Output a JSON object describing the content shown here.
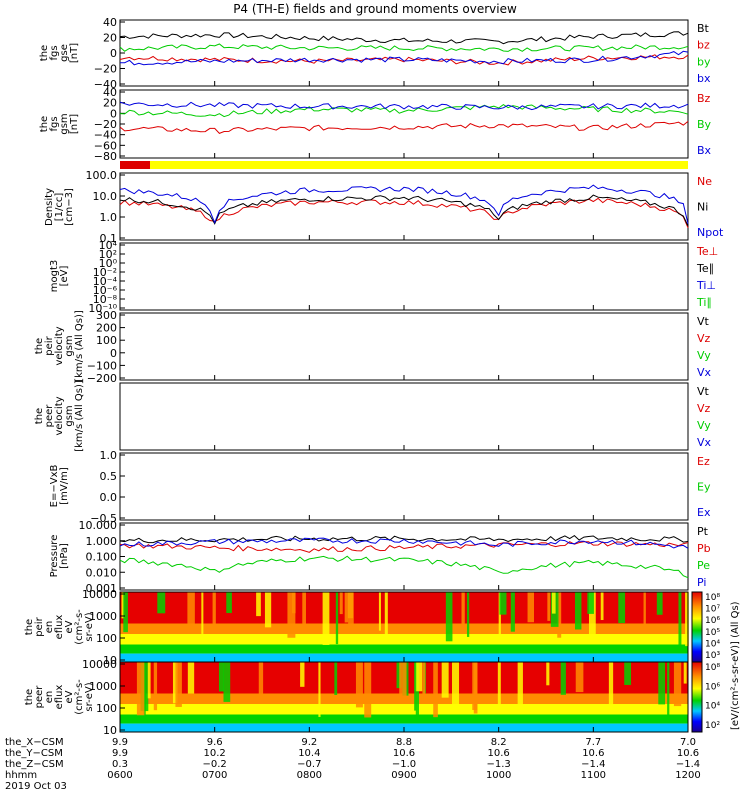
{
  "page_title": "P4 (TH-E) fields and ground moments overview",
  "chart_data": [
    {
      "type": "line",
      "panel_id": "fgs_gse",
      "ylabel_lines": [
        "the",
        "fgs",
        "gse",
        "[nT]"
      ],
      "yticks": [
        "40",
        "20",
        "0",
        "−20",
        "−40"
      ],
      "ylim": [
        -40,
        40
      ],
      "x": [
        "0600",
        "0700",
        "0800",
        "0900",
        "1000",
        "1100",
        "1200"
      ],
      "series": [
        {
          "name": "Bt",
          "color": "#000000",
          "values": [
            20,
            22,
            18,
            15,
            14,
            20,
            24
          ]
        },
        {
          "name": "bz",
          "color": "#dd0000",
          "values": [
            -5,
            -8,
            -10,
            -8,
            -12,
            -6,
            -4
          ]
        },
        {
          "name": "by",
          "color": "#00cc00",
          "values": [
            5,
            8,
            6,
            6,
            5,
            6,
            8
          ]
        },
        {
          "name": "bx",
          "color": "#0000dd",
          "values": [
            -12,
            -10,
            -8,
            -8,
            -10,
            -8,
            0
          ]
        }
      ]
    },
    {
      "type": "line",
      "panel_id": "fgs_gsm",
      "ylabel_lines": [
        "the",
        "fgs",
        "gsm",
        "[nT]"
      ],
      "yticks": [
        "40",
        "20",
        "0",
        "−20",
        "−40",
        "−60",
        "−80"
      ],
      "ylim": [
        -85,
        40
      ],
      "x": [
        "0600",
        "0700",
        "0800",
        "0900",
        "1000",
        "1100",
        "1200"
      ],
      "series": [
        {
          "name": "Bz",
          "color": "#dd0000",
          "values": [
            -30,
            -35,
            -30,
            -28,
            -25,
            -30,
            -20
          ]
        },
        {
          "name": "By",
          "color": "#00cc00",
          "values": [
            0,
            -5,
            5,
            2,
            10,
            5,
            0
          ]
        },
        {
          "name": "Bx",
          "color": "#0000dd",
          "values": [
            15,
            12,
            10,
            10,
            8,
            10,
            12
          ]
        }
      ]
    },
    {
      "type": "line",
      "panel_id": "density",
      "ylabel_lines": [
        "Density",
        "[1/cc]",
        "[cm−3]"
      ],
      "yticks": [
        "100.0",
        "10.0",
        "1.0",
        "0.1"
      ],
      "log": true,
      "x": [
        "0600",
        "0700",
        "0800",
        "0900",
        "1000",
        "1100",
        "1200"
      ],
      "series": [
        {
          "name": "Ne",
          "color": "#dd0000",
          "values": [
            6,
            0.2,
            6,
            6,
            0.3,
            8,
            0.15
          ]
        },
        {
          "name": "Ni",
          "color": "#000000",
          "values": [
            10,
            0.25,
            10,
            12,
            0.4,
            12,
            0.2
          ]
        },
        {
          "name": "Npot",
          "color": "#0000dd",
          "values": [
            40,
            0.3,
            40,
            50,
            0.5,
            60,
            0.3
          ]
        }
      ]
    },
    {
      "type": "line",
      "panel_id": "temperature",
      "ylabel_lines": [
        "mogt3",
        "[eV]"
      ],
      "yticks": [
        "10⁴",
        "10²",
        "10⁰",
        "10⁻²",
        "10⁻⁴",
        "10⁻⁶",
        "10⁻⁸",
        "10⁻¹⁰"
      ],
      "log": true,
      "series": [
        {
          "name": "Te⊥",
          "color": "#dd0000"
        },
        {
          "name": "Te∥",
          "color": "#000000"
        },
        {
          "name": "Ti⊥",
          "color": "#0000dd"
        },
        {
          "name": "Ti∥",
          "color": "#00cc00"
        }
      ]
    },
    {
      "type": "line",
      "panel_id": "peir_velocity",
      "ylabel_lines": [
        "the",
        "peir",
        "velocity",
        "gsm",
        "[km/s (All Qs)]"
      ],
      "yticks": [
        "300",
        "200",
        "100",
        "0",
        "−100",
        "−200"
      ],
      "ylim": [
        -200,
        300
      ],
      "series": [
        {
          "name": "Vt",
          "color": "#000000"
        },
        {
          "name": "Vz",
          "color": "#dd0000"
        },
        {
          "name": "Vy",
          "color": "#00cc00"
        },
        {
          "name": "Vx",
          "color": "#0000dd"
        }
      ]
    },
    {
      "type": "line",
      "panel_id": "peer_velocity",
      "ylabel_lines": [
        "the",
        "peer",
        "velocity",
        "gsm",
        "[km/s (All Qs)]"
      ],
      "series": [
        {
          "name": "Vt",
          "color": "#000000"
        },
        {
          "name": "Vz",
          "color": "#dd0000"
        },
        {
          "name": "Vy",
          "color": "#00cc00"
        },
        {
          "name": "Vx",
          "color": "#0000dd"
        }
      ]
    },
    {
      "type": "line",
      "panel_id": "e_field",
      "ylabel_lines": [
        "E=−VxB",
        "[mV/m]"
      ],
      "yticks": [
        "1.0",
        "0.5",
        "0.0",
        "−0.5"
      ],
      "ylim": [
        -0.5,
        1.25
      ],
      "series": [
        {
          "name": "Ez",
          "color": "#dd0000"
        },
        {
          "name": "Ey",
          "color": "#00cc00"
        },
        {
          "name": "Ex",
          "color": "#0000dd"
        }
      ]
    },
    {
      "type": "line",
      "panel_id": "pressure",
      "ylabel_lines": [
        "Pressure",
        "[nPa]"
      ],
      "yticks": [
        "10.000",
        "1.000",
        "0.100",
        "0.010",
        "0.001"
      ],
      "log": true,
      "x": [
        "0600",
        "0700",
        "0800",
        "0900",
        "1000",
        "1100",
        "1200"
      ],
      "series": [
        {
          "name": "Pt",
          "color": "#000000",
          "values": [
            0.6,
            0.7,
            0.8,
            0.8,
            0.7,
            0.9,
            0.7
          ]
        },
        {
          "name": "Pb",
          "color": "#dd0000",
          "values": [
            0.3,
            0.2,
            0.15,
            0.2,
            0.3,
            0.4,
            0.3
          ]
        },
        {
          "name": "Pe",
          "color": "#00cc00",
          "values": [
            0.03,
            0.005,
            0.04,
            0.03,
            0.004,
            0.02,
            0.003
          ]
        },
        {
          "name": "Pi",
          "color": "#0000dd",
          "values": [
            0.3,
            0.5,
            0.6,
            0.6,
            0.3,
            0.6,
            0.2
          ]
        }
      ]
    },
    {
      "type": "heatmap",
      "panel_id": "peir_eflux",
      "ylabel_lines": [
        "the",
        "peir",
        "en",
        "eflux",
        "eV",
        "(cm²-s-",
        "sr-eV)"
      ],
      "yticks": [
        "10000",
        "1000",
        "100",
        "10"
      ],
      "log": true
    },
    {
      "type": "heatmap",
      "panel_id": "peer_eflux",
      "ylabel_lines": [
        "the",
        "peer",
        "en",
        "eflux",
        "eV",
        "(cm²-s-",
        "sr-eV)"
      ],
      "yticks": [
        "10000",
        "1000",
        "100",
        "10"
      ],
      "log": true
    }
  ],
  "colorbar": {
    "ticks": [
      "10⁸",
      "10⁷",
      "10⁶",
      "10⁵",
      "10⁴",
      "10³"
    ],
    "ticks2": [
      "10⁸",
      "10⁶",
      "10⁴",
      "10²"
    ],
    "label": "[eV/(cm²-s-sr-eV)] (All Qs)",
    "label2": "(eV/(cm²-s-sr-eV))"
  },
  "x_axis": {
    "row_labels": [
      "the_X−CSM",
      "the_Y−CSM",
      "the_Z−CSM",
      "hhmm",
      "2019 Oct 03"
    ],
    "columns": [
      {
        "x": "9.9",
        "y": "9.9",
        "z": "0.3",
        "hhmm": "0600"
      },
      {
        "x": "9.6",
        "y": "10.2",
        "z": "−0.2",
        "hhmm": "0700"
      },
      {
        "x": "9.2",
        "y": "10.4",
        "z": "−0.7",
        "hhmm": "0800"
      },
      {
        "x": "8.8",
        "y": "10.6",
        "z": "−1.0",
        "hhmm": "0900"
      },
      {
        "x": "8.2",
        "y": "10.6",
        "z": "−1.3",
        "hhmm": "1000"
      },
      {
        "x": "7.7",
        "y": "10.6",
        "z": "−1.4",
        "hhmm": "1100"
      },
      {
        "x": "7.0",
        "y": "10.6",
        "z": "−1.4",
        "hhmm": "1200"
      }
    ]
  }
}
